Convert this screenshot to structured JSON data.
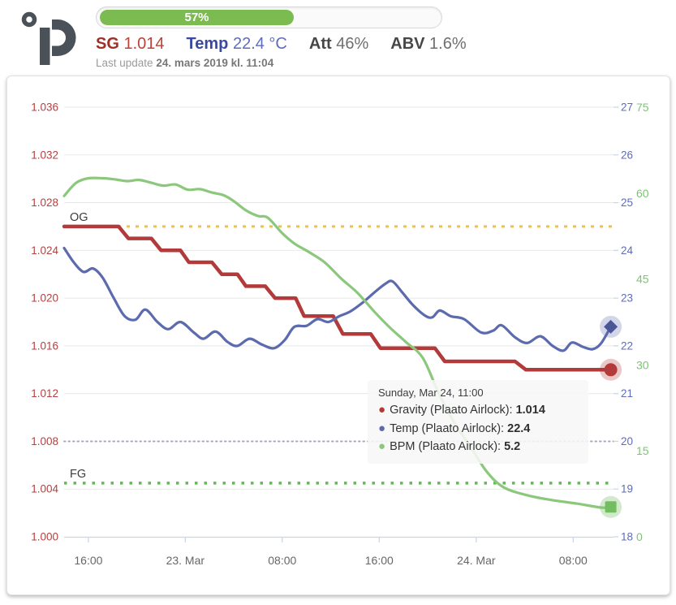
{
  "header": {
    "progress": {
      "percent": 57,
      "percent_label": "57%",
      "fill_color": "#7cbb4f"
    },
    "stats": [
      {
        "id": "sg",
        "label": "SG",
        "value": "1.014",
        "label_color": "#a12f28",
        "value_color": "#bc4337"
      },
      {
        "id": "temp",
        "label": "Temp",
        "value": "22.4 °C",
        "label_color": "#3a49a0",
        "value_color": "#5d6cc0"
      },
      {
        "id": "att",
        "label": "Att",
        "value": "46%",
        "label_color": "#474747",
        "value_color": "#6f6f6f"
      },
      {
        "id": "abv",
        "label": "ABV",
        "value": "1.6%",
        "label_color": "#474747",
        "value_color": "#6f6f6f"
      }
    ],
    "last_update_prefix": "Last update",
    "last_update_value": "24. mars 2019 kl. 11:04"
  },
  "tooltip": {
    "date": "Sunday, Mar 24, 11:00",
    "rows": [
      {
        "label": "Gravity (Plaato Airlock):",
        "value": "1.014",
        "color": "#b23a3a"
      },
      {
        "label": "Temp (Plaato Airlock):",
        "value": "22.4",
        "color": "#5c6aae"
      },
      {
        "label": "BPM (Plaato Airlock):",
        "value": "5.2",
        "color": "#8cc87c"
      }
    ]
  },
  "chart_data": {
    "type": "line",
    "x_unit": "hours since Mar 22 14:00",
    "x_range": [
      0,
      45.33
    ],
    "x_ticks": [
      {
        "t": 2,
        "label": "16:00"
      },
      {
        "t": 10,
        "label": "23. Mar"
      },
      {
        "t": 18,
        "label": "08:00"
      },
      {
        "t": 26,
        "label": "16:00"
      },
      {
        "t": 34,
        "label": "24. Mar"
      },
      {
        "t": 42,
        "label": "08:00"
      }
    ],
    "axes": {
      "sg": {
        "min": 1.0,
        "max": 1.036,
        "labels": [
          "1.036",
          "1.032",
          "1.028",
          "1.024",
          "1.020",
          "1.016",
          "1.012",
          "1.008",
          "1.004",
          "1.000"
        ],
        "color": "#b54040",
        "side": "left"
      },
      "temp": {
        "min": 18,
        "max": 27,
        "labels": [
          "27",
          "26",
          "25",
          "24",
          "23",
          "22",
          "21",
          "20",
          "19",
          "18"
        ],
        "color": "#5f6cb4",
        "side": "right"
      },
      "bpm": {
        "min": 0,
        "max": 75,
        "labels": [
          "75",
          "60",
          "45",
          "30",
          "15",
          "0"
        ],
        "color": "#7cc573",
        "side": "right-outer"
      }
    },
    "grid": {
      "color": "#e8e8e8",
      "axis_line_color": "#c9d4ea",
      "dotted_row_label": "20",
      "dotted_row_color": "#a3a9c2"
    },
    "plotlines": [
      {
        "id": "og",
        "axis": "sg",
        "value": 1.026,
        "label": "OG",
        "color": "#eec14b",
        "dash": "4 7",
        "width": 3
      },
      {
        "id": "fg",
        "axis": "sg",
        "value": 1.0045,
        "label": "FG",
        "color": "#62ba55",
        "dash": "3.5 8",
        "width": 3.5
      },
      {
        "id": "temp20",
        "axis": "temp",
        "value": 20,
        "label": "",
        "color": "#a3a9c2",
        "dash": "1.5 4",
        "width": 2
      }
    ],
    "series": [
      {
        "name": "Gravity (Plaato Airlock)",
        "axis": "sg",
        "color": "#b23a3a",
        "width": 4.5,
        "smooth": false,
        "marker": {
          "shape": "circle",
          "fill": "#b23a3a",
          "halo": "rgba(178,58,58,0.28)"
        },
        "points": [
          [
            0,
            1.026
          ],
          [
            4.5,
            1.026
          ],
          [
            5.3,
            1.025
          ],
          [
            7.2,
            1.025
          ],
          [
            8.0,
            1.024
          ],
          [
            9.6,
            1.024
          ],
          [
            10.3,
            1.023
          ],
          [
            12.2,
            1.023
          ],
          [
            13.0,
            1.022
          ],
          [
            14.3,
            1.022
          ],
          [
            15.0,
            1.021
          ],
          [
            16.6,
            1.021
          ],
          [
            17.4,
            1.02
          ],
          [
            19.1,
            1.02
          ],
          [
            19.8,
            1.0185
          ],
          [
            22.2,
            1.0185
          ],
          [
            23.0,
            1.017
          ],
          [
            25.3,
            1.017
          ],
          [
            26.1,
            1.0158
          ],
          [
            30.6,
            1.0158
          ],
          [
            31.4,
            1.0147
          ],
          [
            37.2,
            1.0147
          ],
          [
            38.1,
            1.014
          ],
          [
            45.1,
            1.014
          ]
        ]
      },
      {
        "name": "Temp (Plaato Airlock)",
        "axis": "temp",
        "color": "#5c6aae",
        "width": 3.2,
        "smooth": true,
        "marker": {
          "shape": "diamond",
          "fill": "#4a5796",
          "halo": "rgba(92,106,174,0.28)"
        },
        "points": [
          [
            0,
            24.05
          ],
          [
            0.8,
            23.75
          ],
          [
            1.6,
            23.55
          ],
          [
            2.4,
            23.62
          ],
          [
            3.2,
            23.42
          ],
          [
            4.1,
            23.0
          ],
          [
            5.0,
            22.62
          ],
          [
            5.9,
            22.55
          ],
          [
            6.7,
            22.76
          ],
          [
            7.7,
            22.5
          ],
          [
            8.6,
            22.35
          ],
          [
            9.6,
            22.5
          ],
          [
            10.7,
            22.28
          ],
          [
            11.5,
            22.15
          ],
          [
            12.5,
            22.3
          ],
          [
            13.5,
            22.08
          ],
          [
            14.3,
            22.0
          ],
          [
            15.3,
            22.15
          ],
          [
            16.3,
            22.03
          ],
          [
            17.3,
            21.95
          ],
          [
            18.2,
            22.12
          ],
          [
            19.0,
            22.4
          ],
          [
            20.0,
            22.42
          ],
          [
            20.9,
            22.56
          ],
          [
            21.8,
            22.5
          ],
          [
            22.7,
            22.62
          ],
          [
            23.6,
            22.72
          ],
          [
            24.6,
            22.9
          ],
          [
            25.6,
            23.12
          ],
          [
            26.5,
            23.3
          ],
          [
            27.1,
            23.35
          ],
          [
            27.9,
            23.12
          ],
          [
            28.8,
            22.85
          ],
          [
            29.8,
            22.63
          ],
          [
            30.4,
            22.6
          ],
          [
            31.0,
            22.74
          ],
          [
            31.9,
            22.62
          ],
          [
            33.0,
            22.56
          ],
          [
            34.4,
            22.28
          ],
          [
            35.4,
            22.32
          ],
          [
            36.1,
            22.43
          ],
          [
            37.2,
            22.18
          ],
          [
            38.2,
            22.06
          ],
          [
            39.3,
            22.2
          ],
          [
            40.3,
            22.0
          ],
          [
            41.2,
            21.9
          ],
          [
            41.9,
            22.07
          ],
          [
            42.8,
            21.98
          ],
          [
            43.6,
            21.93
          ],
          [
            44.3,
            22.05
          ],
          [
            45.1,
            22.4
          ]
        ]
      },
      {
        "name": "BPM (Plaato Airlock)",
        "axis": "bpm",
        "color": "#8cc87c",
        "width": 3.2,
        "smooth": true,
        "marker": {
          "shape": "square",
          "fill": "#72bd5f",
          "halo": "rgba(125,195,107,0.35)"
        },
        "points": [
          [
            0,
            59.5
          ],
          [
            1,
            61.8
          ],
          [
            2,
            62.6
          ],
          [
            3.2,
            62.6
          ],
          [
            4.2,
            62.4
          ],
          [
            5.2,
            62.1
          ],
          [
            6.2,
            62.3
          ],
          [
            7.2,
            61.8
          ],
          [
            8.2,
            61.3
          ],
          [
            9.2,
            61.5
          ],
          [
            10.2,
            60.6
          ],
          [
            11.2,
            60.7
          ],
          [
            12.2,
            60.1
          ],
          [
            13.2,
            59.6
          ],
          [
            14.0,
            58.6
          ],
          [
            15.0,
            57.0
          ],
          [
            16.0,
            56.0
          ],
          [
            16.8,
            55.7
          ],
          [
            18.0,
            53.0
          ],
          [
            19.0,
            51.2
          ],
          [
            20.2,
            49.7
          ],
          [
            21.5,
            47.9
          ],
          [
            22.9,
            45.0
          ],
          [
            24.2,
            42.6
          ],
          [
            25.6,
            39.3
          ],
          [
            26.9,
            36.5
          ],
          [
            28.2,
            34.0
          ],
          [
            29.6,
            31.2
          ],
          [
            30.9,
            25.1
          ],
          [
            32.2,
            19.9
          ],
          [
            33.6,
            15.5
          ],
          [
            34.9,
            11.3
          ],
          [
            36.3,
            8.6
          ],
          [
            38.3,
            7.2
          ],
          [
            40.3,
            6.4
          ],
          [
            42.3,
            5.8
          ],
          [
            44.3,
            5.1
          ],
          [
            45.1,
            5.2
          ]
        ]
      }
    ]
  }
}
